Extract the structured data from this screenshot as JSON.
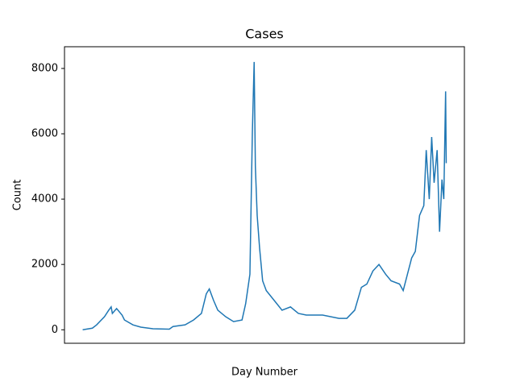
{
  "chart_data": {
    "type": "line",
    "title": "Cases",
    "x_label": "Day Number",
    "y_label": "Count",
    "x": [
      0,
      16,
      23,
      36,
      43,
      47,
      49,
      56,
      65,
      69,
      83,
      96,
      116,
      143,
      149,
      169,
      183,
      196,
      204,
      209,
      216,
      223,
      236,
      249,
      263,
      269,
      276,
      280,
      283,
      285,
      288,
      292,
      297,
      303,
      316,
      329,
      343,
      356,
      369,
      396,
      423,
      436,
      449,
      460,
      469,
      479,
      489,
      500,
      509,
      523,
      529,
      536,
      543,
      549,
      556,
      563,
      567,
      572,
      576,
      580,
      585,
      589,
      593,
      596,
      599,
      600
    ],
    "series": [
      {
        "name": "Cases",
        "color": "#1f77b4",
        "values": [
          0,
          50,
          150,
          400,
          600,
          700,
          500,
          650,
          450,
          300,
          150,
          80,
          30,
          20,
          100,
          150,
          300,
          500,
          1100,
          1250,
          900,
          600,
          400,
          250,
          300,
          800,
          1700,
          6000,
          8200,
          5000,
          3500,
          2500,
          1500,
          1200,
          900,
          600,
          700,
          500,
          450,
          450,
          350,
          350,
          600,
          1300,
          1400,
          1800,
          2000,
          1700,
          1500,
          1400,
          1200,
          1700,
          2200,
          2400,
          3500,
          3800,
          5500,
          4000,
          5900,
          4500,
          5500,
          3000,
          4600,
          4000,
          7300,
          5100
        ]
      }
    ],
    "xlim": [
      -30,
      630
    ],
    "ylim": [
      -413,
      8665
    ],
    "yticks": [
      0,
      2000,
      4000,
      6000,
      8000
    ]
  }
}
